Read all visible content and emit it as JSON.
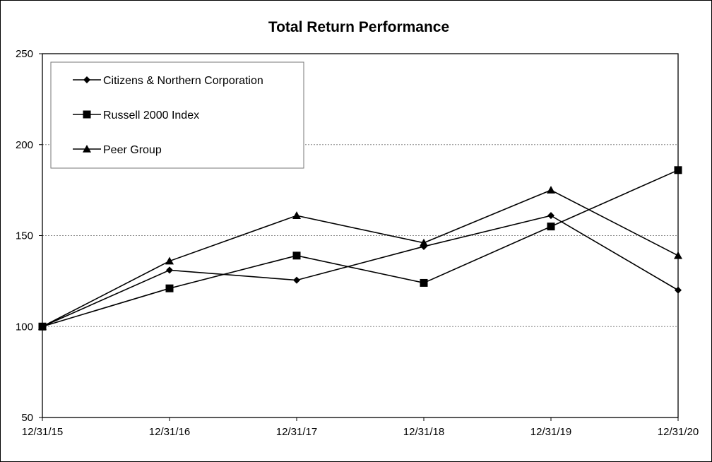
{
  "chart_data": {
    "type": "line",
    "title": "Total Return Performance",
    "xlabel": "",
    "ylabel": "",
    "categories": [
      "12/31/15",
      "12/31/16",
      "12/31/17",
      "12/31/18",
      "12/31/19",
      "12/31/20"
    ],
    "ylim": [
      50,
      250
    ],
    "yticks": [
      50,
      100,
      150,
      200,
      250
    ],
    "grid": "horizontal dashed",
    "legend_position": "top-left",
    "series": [
      {
        "name": "Citizens & Northern Corporation",
        "marker": "diamond",
        "color": "#000000",
        "values": [
          100,
          131,
          125.5,
          144,
          161,
          120
        ]
      },
      {
        "name": "Russell 2000 Index",
        "marker": "square",
        "color": "#000000",
        "values": [
          100,
          121,
          139,
          124,
          155,
          186
        ]
      },
      {
        "name": "Peer Group",
        "marker": "triangle",
        "color": "#000000",
        "values": [
          100,
          136,
          161,
          146,
          175,
          139
        ]
      }
    ]
  }
}
